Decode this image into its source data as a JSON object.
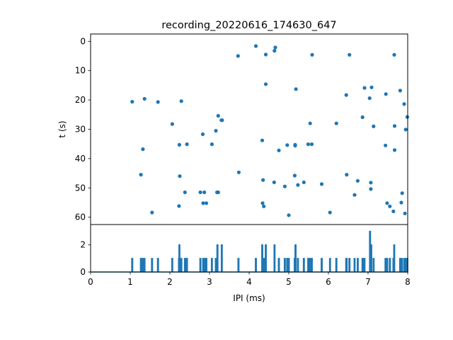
{
  "title": "recording_20220616_174630_647",
  "colors": {
    "series": "#1f77b4",
    "axes": "#000000",
    "background": "#ffffff"
  },
  "chart_data": [
    {
      "type": "scatter",
      "panel": "top",
      "xlabel": "",
      "ylabel": "t (s)",
      "xlim": [
        0,
        8
      ],
      "ylim": [
        62.5,
        -2.5
      ],
      "y_inverted": true,
      "grid": false,
      "yticks": [
        0,
        10,
        20,
        30,
        40,
        50,
        60
      ],
      "points": [
        {
          "x": 1.05,
          "y": 20.6
        },
        {
          "x": 1.27,
          "y": 45.5
        },
        {
          "x": 1.32,
          "y": 36.8
        },
        {
          "x": 1.36,
          "y": 19.6
        },
        {
          "x": 1.55,
          "y": 58.4
        },
        {
          "x": 1.7,
          "y": 20.7
        },
        {
          "x": 2.06,
          "y": 28.2
        },
        {
          "x": 2.23,
          "y": 56.2
        },
        {
          "x": 2.24,
          "y": 35.3
        },
        {
          "x": 2.25,
          "y": 46.0
        },
        {
          "x": 2.29,
          "y": 20.4
        },
        {
          "x": 2.38,
          "y": 51.5
        },
        {
          "x": 2.43,
          "y": 35.1
        },
        {
          "x": 2.77,
          "y": 51.5
        },
        {
          "x": 2.83,
          "y": 31.7
        },
        {
          "x": 2.84,
          "y": 55.2
        },
        {
          "x": 2.87,
          "y": 51.5
        },
        {
          "x": 2.92,
          "y": 55.2
        },
        {
          "x": 3.06,
          "y": 35.1
        },
        {
          "x": 3.16,
          "y": 30.5
        },
        {
          "x": 3.19,
          "y": 51.5
        },
        {
          "x": 3.22,
          "y": 51.5
        },
        {
          "x": 3.22,
          "y": 25.4
        },
        {
          "x": 3.3,
          "y": 26.9
        },
        {
          "x": 3.32,
          "y": 26.9
        },
        {
          "x": 3.72,
          "y": 5.0
        },
        {
          "x": 3.74,
          "y": 44.7
        },
        {
          "x": 4.17,
          "y": 1.6
        },
        {
          "x": 4.33,
          "y": 33.8
        },
        {
          "x": 4.34,
          "y": 55.2
        },
        {
          "x": 4.35,
          "y": 47.3
        },
        {
          "x": 4.37,
          "y": 56.3
        },
        {
          "x": 4.42,
          "y": 4.5
        },
        {
          "x": 4.42,
          "y": 14.6
        },
        {
          "x": 4.64,
          "y": 3.2
        },
        {
          "x": 4.66,
          "y": 2.1
        },
        {
          "x": 4.63,
          "y": 48.1
        },
        {
          "x": 4.75,
          "y": 37.2
        },
        {
          "x": 4.9,
          "y": 49.5
        },
        {
          "x": 4.96,
          "y": 35.4
        },
        {
          "x": 5.0,
          "y": 59.3
        },
        {
          "x": 5.15,
          "y": 45.8
        },
        {
          "x": 5.16,
          "y": 35.3
        },
        {
          "x": 5.16,
          "y": 35.6
        },
        {
          "x": 5.18,
          "y": 16.3
        },
        {
          "x": 5.23,
          "y": 49.0
        },
        {
          "x": 5.38,
          "y": 48.1
        },
        {
          "x": 5.49,
          "y": 35.1
        },
        {
          "x": 5.54,
          "y": 28.0
        },
        {
          "x": 5.58,
          "y": 35.1
        },
        {
          "x": 5.59,
          "y": 4.6
        },
        {
          "x": 5.83,
          "y": 48.7
        },
        {
          "x": 6.04,
          "y": 58.4
        },
        {
          "x": 6.2,
          "y": 28.0
        },
        {
          "x": 6.45,
          "y": 18.3
        },
        {
          "x": 6.46,
          "y": 45.5
        },
        {
          "x": 6.53,
          "y": 4.6
        },
        {
          "x": 6.66,
          "y": 52.4
        },
        {
          "x": 6.74,
          "y": 47.6
        },
        {
          "x": 6.86,
          "y": 25.9
        },
        {
          "x": 6.91,
          "y": 15.9
        },
        {
          "x": 7.04,
          "y": 19.4
        },
        {
          "x": 7.07,
          "y": 48.2
        },
        {
          "x": 7.07,
          "y": 50.4
        },
        {
          "x": 7.09,
          "y": 15.7
        },
        {
          "x": 7.14,
          "y": 29.0
        },
        {
          "x": 7.44,
          "y": 35.5
        },
        {
          "x": 7.45,
          "y": 18.0
        },
        {
          "x": 7.48,
          "y": 55.2
        },
        {
          "x": 7.55,
          "y": 56.3
        },
        {
          "x": 7.64,
          "y": 58.0
        },
        {
          "x": 7.66,
          "y": 4.6
        },
        {
          "x": 7.67,
          "y": 28.9
        },
        {
          "x": 7.67,
          "y": 37.1
        },
        {
          "x": 7.81,
          "y": 16.8
        },
        {
          "x": 7.84,
          "y": 55.0
        },
        {
          "x": 7.86,
          "y": 51.8
        },
        {
          "x": 7.91,
          "y": 21.4
        },
        {
          "x": 7.93,
          "y": 58.7
        },
        {
          "x": 7.95,
          "y": 30.1
        },
        {
          "x": 7.99,
          "y": 25.8
        }
      ]
    },
    {
      "type": "line",
      "panel": "bottom",
      "xlabel": "IPI (ms)",
      "ylabel": "",
      "xlim": [
        0,
        8
      ],
      "ylim": [
        0,
        3.5
      ],
      "grid": false,
      "xticks": [
        0,
        1,
        2,
        3,
        4,
        5,
        6,
        7,
        8
      ],
      "yticks": [
        0,
        2
      ],
      "spikes": [
        {
          "x": 1.05,
          "y": 1
        },
        {
          "x": 1.27,
          "y": 1
        },
        {
          "x": 1.32,
          "y": 1
        },
        {
          "x": 1.36,
          "y": 1
        },
        {
          "x": 1.55,
          "y": 1
        },
        {
          "x": 1.7,
          "y": 1
        },
        {
          "x": 2.06,
          "y": 1
        },
        {
          "x": 2.23,
          "y": 1
        },
        {
          "x": 2.24,
          "y": 2
        },
        {
          "x": 2.29,
          "y": 1
        },
        {
          "x": 2.38,
          "y": 1
        },
        {
          "x": 2.43,
          "y": 1
        },
        {
          "x": 2.77,
          "y": 1
        },
        {
          "x": 2.84,
          "y": 1
        },
        {
          "x": 2.87,
          "y": 1
        },
        {
          "x": 2.92,
          "y": 1
        },
        {
          "x": 3.06,
          "y": 1
        },
        {
          "x": 3.16,
          "y": 1
        },
        {
          "x": 3.2,
          "y": 2
        },
        {
          "x": 3.31,
          "y": 2
        },
        {
          "x": 3.73,
          "y": 1
        },
        {
          "x": 4.17,
          "y": 1
        },
        {
          "x": 4.33,
          "y": 2
        },
        {
          "x": 4.37,
          "y": 1
        },
        {
          "x": 4.42,
          "y": 2
        },
        {
          "x": 4.64,
          "y": 2
        },
        {
          "x": 4.75,
          "y": 1
        },
        {
          "x": 4.9,
          "y": 1
        },
        {
          "x": 4.96,
          "y": 1
        },
        {
          "x": 5.0,
          "y": 1
        },
        {
          "x": 5.15,
          "y": 1
        },
        {
          "x": 5.17,
          "y": 2
        },
        {
          "x": 5.23,
          "y": 1
        },
        {
          "x": 5.38,
          "y": 1
        },
        {
          "x": 5.49,
          "y": 1
        },
        {
          "x": 5.54,
          "y": 1
        },
        {
          "x": 5.58,
          "y": 1
        },
        {
          "x": 5.83,
          "y": 1
        },
        {
          "x": 6.04,
          "y": 1
        },
        {
          "x": 6.2,
          "y": 1
        },
        {
          "x": 6.45,
          "y": 1
        },
        {
          "x": 6.46,
          "y": 1
        },
        {
          "x": 6.53,
          "y": 1
        },
        {
          "x": 6.66,
          "y": 1
        },
        {
          "x": 6.74,
          "y": 1
        },
        {
          "x": 6.86,
          "y": 1
        },
        {
          "x": 6.91,
          "y": 1
        },
        {
          "x": 7.05,
          "y": 3
        },
        {
          "x": 7.08,
          "y": 2
        },
        {
          "x": 7.14,
          "y": 1
        },
        {
          "x": 7.44,
          "y": 1
        },
        {
          "x": 7.48,
          "y": 1
        },
        {
          "x": 7.55,
          "y": 1
        },
        {
          "x": 7.64,
          "y": 1
        },
        {
          "x": 7.66,
          "y": 2
        },
        {
          "x": 7.81,
          "y": 1
        },
        {
          "x": 7.85,
          "y": 1
        },
        {
          "x": 7.91,
          "y": 1
        },
        {
          "x": 7.93,
          "y": 1
        },
        {
          "x": 7.95,
          "y": 1
        },
        {
          "x": 7.99,
          "y": 1
        }
      ]
    }
  ]
}
